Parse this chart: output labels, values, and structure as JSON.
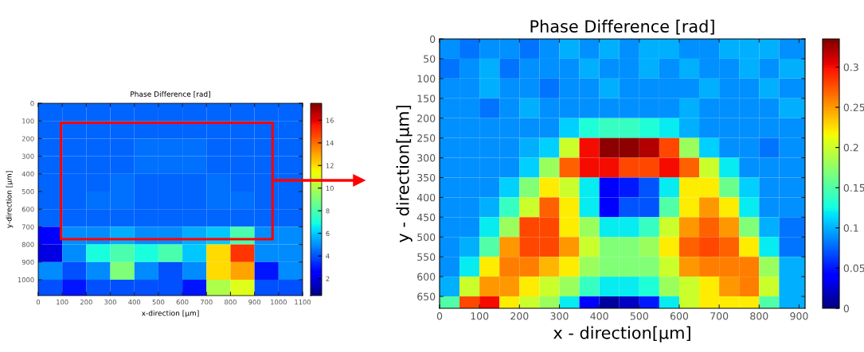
{
  "chart_data": [
    {
      "type": "heatmap",
      "title": "Phase Difference [rad]",
      "xlabel": "x-direction [µm]",
      "ylabel": "y-direction [µm]",
      "x": [
        50,
        150,
        250,
        350,
        450,
        550,
        650,
        750,
        850,
        950,
        1050
      ],
      "y": [
        50,
        150,
        250,
        350,
        450,
        550,
        650,
        750,
        850,
        950,
        1045
      ],
      "cells": [
        [
          4.3,
          4.3,
          4.3,
          4.3,
          4.3,
          4.3,
          4.3,
          4.3,
          4.3,
          4.3,
          4.3
        ],
        [
          4.3,
          4.3,
          4.3,
          4.3,
          4.3,
          4.3,
          4.3,
          4.3,
          4.3,
          4.3,
          4.3
        ],
        [
          4.3,
          4.3,
          4.3,
          4.3,
          4.5,
          4.5,
          4.5,
          4.3,
          4.3,
          4.3,
          4.3
        ],
        [
          4.3,
          4.3,
          4.3,
          4.3,
          4.5,
          4.5,
          4.5,
          4.3,
          4.3,
          4.3,
          4.3
        ],
        [
          4.3,
          4.3,
          4.3,
          4.5,
          4.3,
          4.3,
          4.3,
          4.5,
          4.3,
          4.3,
          4.3
        ],
        [
          4.3,
          4.3,
          4.5,
          4.5,
          4.3,
          4.3,
          4.3,
          4.5,
          4.5,
          4.3,
          4.3
        ],
        [
          4.3,
          4.3,
          4.3,
          4.3,
          4.3,
          4.3,
          4.3,
          4.3,
          4.3,
          4.3,
          4.3
        ],
        [
          2.5,
          5,
          5,
          5.5,
          5,
          5,
          5.5,
          6,
          8,
          5,
          5
        ],
        [
          2,
          5,
          7,
          8,
          7,
          8,
          6,
          12,
          15,
          5,
          5
        ],
        [
          5,
          4,
          5,
          9,
          5,
          4,
          5,
          12,
          13,
          3,
          5
        ],
        [
          4,
          3,
          4,
          4,
          4,
          4,
          3,
          10,
          11,
          4,
          4
        ]
      ],
      "xlim": [
        0,
        1100
      ],
      "ylim": [
        1090,
        0
      ],
      "xticks": [
        0,
        100,
        200,
        300,
        400,
        500,
        600,
        700,
        800,
        900,
        1000,
        1100
      ],
      "yticks": [
        0,
        100,
        200,
        300,
        400,
        500,
        600,
        700,
        800,
        900,
        1000
      ],
      "clim": [
        0.5,
        17.5
      ],
      "cticks": [
        2,
        4,
        6,
        8,
        10,
        12,
        14,
        16
      ]
    },
    {
      "type": "heatmap",
      "title": "Phase Difference [rad]",
      "xlabel": "x - direction[µm]",
      "ylabel": "y - direction[µm]",
      "x": [
        25,
        75,
        125,
        175,
        225,
        275,
        325,
        375,
        425,
        475,
        525,
        575,
        625,
        675,
        725,
        775,
        825,
        882.5
      ],
      "y": [
        25,
        75,
        125,
        175,
        225,
        275,
        325,
        375,
        425,
        475,
        525,
        575,
        625,
        665
      ],
      "cells": [
        [
          0.09,
          0.08,
          0.09,
          0.09,
          0.08,
          0.09,
          0.1,
          0.09,
          0.1,
          0.09,
          0.1,
          0.1,
          0.09,
          0.09,
          0.1,
          0.1,
          0.1,
          0.09
        ],
        [
          0.08,
          0.09,
          0.1,
          0.08,
          0.09,
          0.09,
          0.09,
          0.1,
          0.09,
          0.09,
          0.1,
          0.09,
          0.1,
          0.09,
          0.09,
          0.1,
          0.09,
          0.1
        ],
        [
          0.09,
          0.09,
          0.1,
          0.09,
          0.09,
          0.08,
          0.09,
          0.09,
          0.1,
          0.09,
          0.09,
          0.09,
          0.09,
          0.1,
          0.09,
          0.09,
          0.1,
          0.09
        ],
        [
          0.09,
          0.09,
          0.08,
          0.09,
          0.1,
          0.09,
          0.09,
          0.09,
          0.09,
          0.09,
          0.09,
          0.09,
          0.1,
          0.09,
          0.09,
          0.09,
          0.09,
          0.1
        ],
        [
          0.09,
          0.09,
          0.09,
          0.09,
          0.09,
          0.09,
          0.11,
          0.13,
          0.14,
          0.14,
          0.13,
          0.12,
          0.1,
          0.09,
          0.09,
          0.09,
          0.09,
          0.09
        ],
        [
          0.09,
          0.09,
          0.09,
          0.09,
          0.1,
          0.11,
          0.2,
          0.3,
          0.33,
          0.33,
          0.32,
          0.28,
          0.18,
          0.11,
          0.09,
          0.09,
          0.08,
          0.09
        ],
        [
          0.09,
          0.09,
          0.09,
          0.09,
          0.11,
          0.18,
          0.27,
          0.3,
          0.3,
          0.28,
          0.28,
          0.3,
          0.27,
          0.2,
          0.12,
          0.09,
          0.09,
          0.09
        ],
        [
          0.09,
          0.09,
          0.09,
          0.11,
          0.17,
          0.22,
          0.2,
          0.12,
          0.04,
          0.05,
          0.07,
          0.12,
          0.22,
          0.22,
          0.16,
          0.11,
          0.09,
          0.09
        ],
        [
          0.09,
          0.09,
          0.1,
          0.14,
          0.2,
          0.27,
          0.22,
          0.12,
          0.04,
          0.07,
          0.07,
          0.15,
          0.22,
          0.25,
          0.22,
          0.12,
          0.09,
          0.09
        ],
        [
          0.09,
          0.09,
          0.12,
          0.18,
          0.28,
          0.28,
          0.22,
          0.18,
          0.12,
          0.12,
          0.14,
          0.2,
          0.25,
          0.27,
          0.25,
          0.17,
          0.1,
          0.08
        ],
        [
          0.09,
          0.1,
          0.15,
          0.25,
          0.28,
          0.28,
          0.25,
          0.2,
          0.17,
          0.17,
          0.18,
          0.22,
          0.27,
          0.28,
          0.27,
          0.22,
          0.12,
          0.08
        ],
        [
          0.09,
          0.12,
          0.22,
          0.26,
          0.26,
          0.24,
          0.22,
          0.18,
          0.17,
          0.17,
          0.17,
          0.2,
          0.25,
          0.26,
          0.26,
          0.26,
          0.18,
          0.1
        ],
        [
          0.1,
          0.2,
          0.25,
          0.25,
          0.22,
          0.2,
          0.18,
          0.14,
          0.12,
          0.12,
          0.13,
          0.18,
          0.2,
          0.22,
          0.25,
          0.26,
          0.2,
          0.1
        ],
        [
          0.15,
          0.28,
          0.3,
          0.22,
          0.2,
          0.18,
          0.12,
          0.04,
          0.01,
          0.02,
          0.05,
          0.12,
          0.2,
          0.22,
          0.22,
          0.22,
          0.15,
          0.1
        ]
      ],
      "xlim": [
        0,
        915
      ],
      "ylim": [
        680,
        0
      ],
      "xticks": [
        0,
        100,
        200,
        300,
        400,
        500,
        600,
        700,
        800,
        900
      ],
      "yticks": [
        0,
        50,
        100,
        150,
        200,
        250,
        300,
        350,
        400,
        450,
        500,
        550,
        600,
        650
      ],
      "clim": [
        0,
        0.335
      ],
      "cticks": [
        0,
        0.05,
        0.1,
        0.15,
        0.2,
        0.25,
        0.3
      ]
    }
  ]
}
